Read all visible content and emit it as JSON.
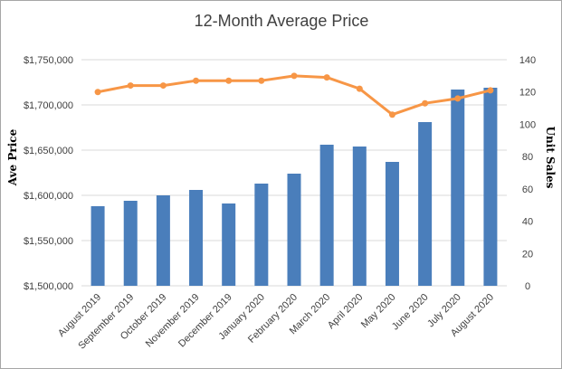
{
  "chart_data": {
    "type": "bar",
    "title": "12-Month Average Price",
    "categories": [
      "August 2019",
      "September 2019",
      "October 2019",
      "November 2019",
      "December 2019",
      "January 2020",
      "February 2020",
      "March 2020",
      "April 2020",
      "May 2020",
      "June 2020",
      "July 2020",
      "August 2020"
    ],
    "series": [
      {
        "type": "bar",
        "axis": "left",
        "color": "#4a7ebb",
        "values": [
          1588000,
          1594000,
          1600000,
          1606000,
          1591000,
          1613000,
          1624000,
          1656000,
          1654000,
          1637000,
          1681000,
          1717000,
          1719000
        ]
      },
      {
        "type": "line",
        "axis": "right",
        "color": "#f79646",
        "values": [
          120,
          124,
          124,
          127,
          127,
          127,
          130,
          129,
          122,
          106,
          113,
          116,
          121
        ]
      }
    ],
    "ylabel": "Ave Price",
    "y2label": "Unit Sales",
    "ylim": [
      1500000,
      1750000
    ],
    "y2lim": [
      0,
      140
    ],
    "yticks": [
      "$1,500,000",
      "$1,550,000",
      "$1,600,000",
      "$1,650,000",
      "$1,700,000",
      "$1,750,000"
    ],
    "y2ticks": [
      "0",
      "20",
      "40",
      "60",
      "80",
      "100",
      "120",
      "140"
    ],
    "grid": true,
    "legend": "none"
  }
}
